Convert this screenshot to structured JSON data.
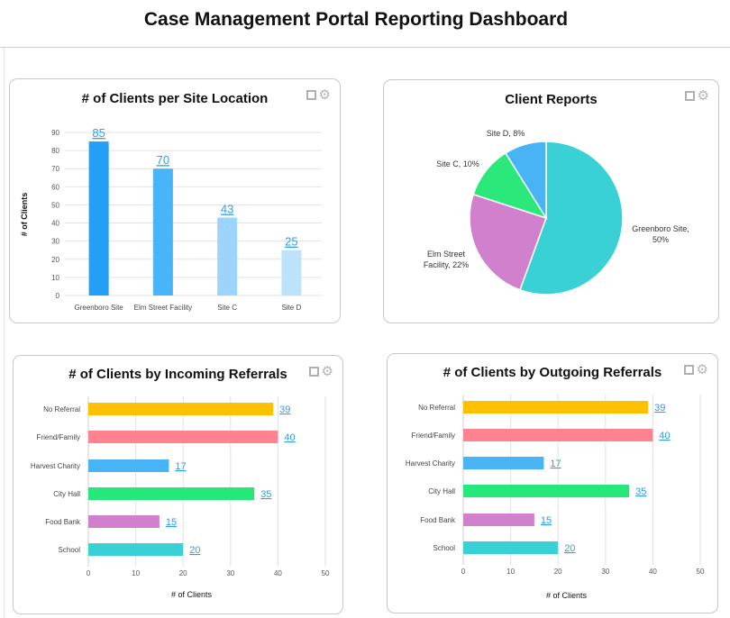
{
  "header": {
    "title": "Case Management Portal Reporting Dashboard"
  },
  "panel_icons": [
    "expand-icon",
    "gear-icon"
  ],
  "chart_data": [
    {
      "type": "bar",
      "title": "# of Clients per Site Location",
      "ylabel": "# of Clients",
      "xlabel": "",
      "categories": [
        "Greenboro Site",
        "Elm Street Facility",
        "Site C",
        "Site D"
      ],
      "values": [
        85,
        70,
        43,
        25
      ],
      "colors": [
        "#23a0f5",
        "#4ab4f8",
        "#9dd4fb",
        "#bde2fc"
      ],
      "ylim": [
        0,
        90
      ],
      "yticks": [
        "0",
        "10",
        "20",
        "30",
        "40",
        "50",
        "60",
        "70",
        "80",
        "90"
      ],
      "grid": true,
      "data_labels": [
        "85",
        "70",
        "43",
        "25"
      ]
    },
    {
      "type": "pie",
      "title": "Client Reports",
      "categories": [
        "Greenboro Site",
        "Elm Street Facility",
        "Site C",
        "Site D"
      ],
      "values": [
        50,
        22,
        10,
        8
      ],
      "labels": [
        "Greenboro Site, 50%",
        "Elm Street Facility, 22%",
        "Site C, 10%",
        "Site D, 8%"
      ],
      "colors": [
        "#3ad1d6",
        "#d080cc",
        "#2ae87a",
        "#48b4f6"
      ]
    },
    {
      "type": "bar",
      "orientation": "horizontal",
      "title": "# of Clients by Incoming Referrals",
      "xlabel": "# of Clients",
      "categories": [
        "No Referral",
        "Friend/Family",
        "Harvest Charity",
        "City Hall",
        "Food Bank",
        "School"
      ],
      "values": [
        39,
        40,
        17,
        35,
        15,
        20
      ],
      "data_labels": [
        "39",
        "40",
        "17",
        "35",
        "15",
        "20"
      ],
      "colors": [
        "#ffc000",
        "#ff8290",
        "#48b4f6",
        "#26e87a",
        "#d080cc",
        "#3ad1d6"
      ],
      "xlim": [
        0,
        50
      ],
      "xticks": [
        "0",
        "10",
        "20",
        "30",
        "40",
        "50"
      ],
      "grid": true
    },
    {
      "type": "bar",
      "orientation": "horizontal",
      "title": "# of Clients by Outgoing Referrals",
      "xlabel": "# of Clients",
      "categories": [
        "No Referral",
        "Friend/Family",
        "Harvest Charity",
        "City Hall",
        "Food Bank",
        "School"
      ],
      "values": [
        39,
        40,
        17,
        35,
        15,
        20
      ],
      "data_labels": [
        "39",
        "40",
        "17",
        "35",
        "15",
        "20"
      ],
      "colors": [
        "#ffc000",
        "#ff8290",
        "#48b4f6",
        "#26e87a",
        "#d080cc",
        "#3ad1d6"
      ],
      "xlim": [
        0,
        50
      ],
      "xticks": [
        "0",
        "10",
        "20",
        "30",
        "40",
        "50"
      ],
      "grid": true
    }
  ]
}
